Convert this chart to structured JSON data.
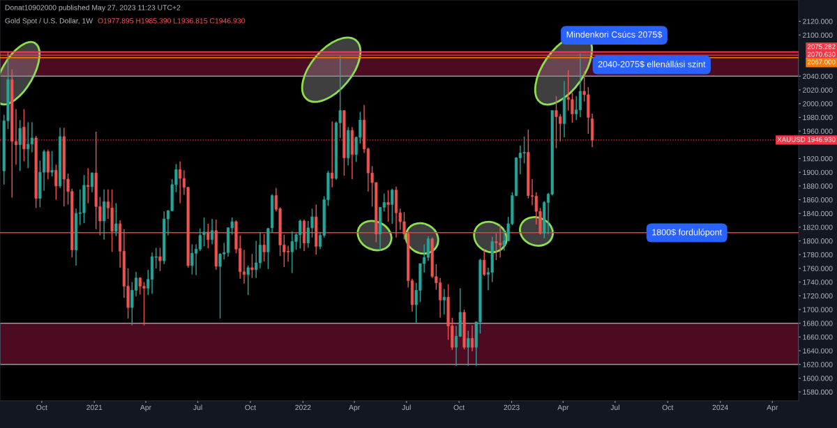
{
  "chart_data": {
    "type": "candlestick",
    "title": "Gold Spot / U.S. Dollar, 1W",
    "subtitle": "O1977.895 H1985.390 L1936.815 C1946.930",
    "annotations": [
      "Donat10902000 published May 27, 2023 11:23 UTC+2",
      "Mindenkori Csúcs 2075$",
      "2040-2075$ ellenállási szint",
      "1800$ fordulópont"
    ],
    "colors": [
      "#26a69a",
      "#26a69a",
      "#ef5350",
      "#ef5350",
      "#26a69a",
      "#ef5350",
      "#26a69a",
      "#26a69a",
      "#ef5350",
      "#26a69a",
      "#26a69a",
      "#ef5350",
      "#26a69a",
      "#ef5350",
      "#26a69a",
      "#ef5350",
      "#ef5350",
      "#ef5350",
      "#26a69a",
      "#26a69a",
      "#26a69a",
      "#ef5350",
      "#26a69a",
      "#ef5350",
      "#ef5350",
      "#26a69a",
      "#ef5350",
      "#ef5350",
      "#26a69a",
      "#ef5350",
      "#ef5350",
      "#ef5350",
      "#26a69a",
      "#26a69a",
      "#ef5350",
      "#ef5350",
      "#26a69a",
      "#26a69a",
      "#26a69a",
      "#ef5350",
      "#26a69a",
      "#26a69a",
      "#26a69a",
      "#26a69a",
      "#ef5350",
      "#ef5350",
      "#ef5350",
      "#26a69a",
      "#26a69a",
      "#26a69a",
      "#26a69a",
      "#ef5350",
      "#26a69a",
      "#ef5350",
      "#26a69a",
      "#26a69a",
      "#26a69a",
      "#26a69a",
      "#ef5350",
      "#ef5350",
      "#ef5350",
      "#26a69a",
      "#ef5350",
      "#26a69a",
      "#26a69a",
      "#ef5350",
      "#26a69a",
      "#26a69a",
      "#ef5350",
      "#ef5350",
      "#ef5350",
      "#ef5350",
      "#26a69a",
      "#26a69a",
      "#26a69a",
      "#ef5350",
      "#26a69a",
      "#26a69a",
      "#ef5350",
      "#26a69a",
      "#26a69a",
      "#26a69a",
      "#ef5350",
      "#26a69a",
      "#26a69a",
      "#ef5350",
      "#26a69a",
      "#ef5350",
      "#26a69a",
      "#26a69a",
      "#ef5350",
      "#ef5350",
      "#ef5350",
      "#ef5350",
      "#26a69a",
      "#26a69a",
      "#ef5350",
      "#26a69a",
      "#ef5350",
      "#ef5350",
      "#ef5350",
      "#ef5350",
      "#ef5350",
      "#26a69a",
      "#26a69a",
      "#26a69a",
      "#26a69a",
      "#ef5350",
      "#ef5350",
      "#ef5350",
      "#26a69a",
      "#ef5350",
      "#ef5350",
      "#26a69a",
      "#26a69a",
      "#ef5350",
      "#26a69a",
      "#ef5350",
      "#26a69a",
      "#26a69a",
      "#ef5350",
      "#26a69a",
      "#26a69a",
      "#ef5350",
      "#ef5350",
      "#26a69a",
      "#26a69a",
      "#26a69a",
      "#26a69a",
      "#26a69a",
      "#26a69a",
      "#ef5350",
      "#ef5350",
      "#ef5350",
      "#ef5350",
      "#26a69a",
      "#26a69a",
      "#26a69a",
      "#ef5350",
      "#ef5350",
      "#26a69a",
      "#ef5350",
      "#ef5350",
      "#26a69a",
      "#26a69a",
      "#ef5350",
      "#ef5350",
      "#ef5350"
    ],
    "x": [
      "2020-07-27",
      "2020-08-03",
      "2020-08-10",
      "2020-08-17",
      "2020-08-24",
      "2020-08-31",
      "2020-09-07",
      "2020-09-14",
      "2020-09-21",
      "2020-09-28",
      "2020-10-05",
      "2020-10-12",
      "2020-10-19",
      "2020-10-26",
      "2020-11-02",
      "2020-11-09",
      "2020-11-16",
      "2020-11-23",
      "2020-11-30",
      "2020-12-07",
      "2020-12-14",
      "2020-12-21",
      "2020-12-28",
      "2021-01-04",
      "2021-01-11",
      "2021-01-18",
      "2021-01-25",
      "2021-02-01",
      "2021-02-08",
      "2021-02-15",
      "2021-02-22",
      "2021-03-01",
      "2021-03-08",
      "2021-03-15",
      "2021-03-22",
      "2021-03-29",
      "2021-04-05",
      "2021-04-12",
      "2021-04-19",
      "2021-04-26",
      "2021-05-03",
      "2021-05-10",
      "2021-05-17",
      "2021-05-24",
      "2021-05-31",
      "2021-06-07",
      "2021-06-14",
      "2021-06-21",
      "2021-06-28",
      "2021-07-05",
      "2021-07-12",
      "2021-07-19",
      "2021-07-26",
      "2021-08-02",
      "2021-08-09",
      "2021-08-16",
      "2021-08-23",
      "2021-08-30",
      "2021-09-06",
      "2021-09-13",
      "2021-09-20",
      "2021-09-27",
      "2021-10-04",
      "2021-10-11",
      "2021-10-18",
      "2021-10-25",
      "2021-11-01",
      "2021-11-08",
      "2021-11-15",
      "2021-11-22",
      "2021-11-29",
      "2021-12-06",
      "2021-12-13",
      "2021-12-20",
      "2021-12-27",
      "2022-01-03",
      "2022-01-10",
      "2022-01-17",
      "2022-01-24",
      "2022-01-31",
      "2022-02-07",
      "2022-02-14",
      "2022-02-21",
      "2022-02-28",
      "2022-03-07",
      "2022-03-14",
      "2022-03-21",
      "2022-03-28",
      "2022-04-04",
      "2022-04-11",
      "2022-04-18",
      "2022-04-25",
      "2022-05-02",
      "2022-05-09",
      "2022-05-16",
      "2022-05-23",
      "2022-05-30",
      "2022-06-06",
      "2022-06-13",
      "2022-06-20",
      "2022-06-27",
      "2022-07-04",
      "2022-07-11",
      "2022-07-18",
      "2022-07-25",
      "2022-08-01",
      "2022-08-08",
      "2022-08-15",
      "2022-08-22",
      "2022-08-29",
      "2022-09-05",
      "2022-09-12",
      "2022-09-19",
      "2022-09-26",
      "2022-10-03",
      "2022-10-10",
      "2022-10-17",
      "2022-10-24",
      "2022-10-31",
      "2022-11-07",
      "2022-11-14",
      "2022-11-21",
      "2022-11-28",
      "2022-12-05",
      "2022-12-12",
      "2022-12-19",
      "2022-12-26",
      "2023-01-02",
      "2023-01-09",
      "2023-01-16",
      "2023-01-23",
      "2023-01-30",
      "2023-02-06",
      "2023-02-13",
      "2023-02-20",
      "2023-02-27",
      "2023-03-06",
      "2023-03-13",
      "2023-03-20",
      "2023-03-27",
      "2023-04-03",
      "2023-04-10",
      "2023-04-17",
      "2023-04-24",
      "2023-05-01",
      "2023-05-08",
      "2023-05-15",
      "2023-05-22"
    ],
    "ohlc": [
      [
        1902,
        1984,
        1882,
        1975
      ],
      [
        1975,
        2075,
        1963,
        2035
      ],
      [
        2035,
        2050,
        1863,
        1945
      ],
      [
        1945,
        1992,
        1911,
        1940
      ],
      [
        1940,
        1976,
        1902,
        1964
      ],
      [
        1966,
        1992,
        1916,
        1934
      ],
      [
        1934,
        1973,
        1906,
        1941
      ],
      [
        1941,
        1973,
        1929,
        1950
      ],
      [
        1950,
        1953,
        1848,
        1862
      ],
      [
        1862,
        1917,
        1849,
        1900
      ],
      [
        1900,
        1933,
        1873,
        1930
      ],
      [
        1930,
        1933,
        1890,
        1900
      ],
      [
        1900,
        1931,
        1894,
        1903
      ],
      [
        1903,
        1911,
        1860,
        1880
      ],
      [
        1880,
        1965,
        1877,
        1952
      ],
      [
        1952,
        1965,
        1850,
        1890
      ],
      [
        1890,
        1898,
        1853,
        1872
      ],
      [
        1872,
        1876,
        1776,
        1787
      ],
      [
        1787,
        1847,
        1764,
        1840
      ],
      [
        1840,
        1875,
        1823,
        1841
      ],
      [
        1841,
        1896,
        1826,
        1881
      ],
      [
        1881,
        1906,
        1855,
        1879
      ],
      [
        1879,
        1900,
        1871,
        1899
      ],
      [
        1899,
        1959,
        1817,
        1850
      ],
      [
        1850,
        1864,
        1808,
        1829
      ],
      [
        1829,
        1875,
        1802,
        1857
      ],
      [
        1857,
        1875,
        1832,
        1848
      ],
      [
        1848,
        1875,
        1784,
        1814
      ],
      [
        1814,
        1855,
        1807,
        1825
      ],
      [
        1825,
        1830,
        1761,
        1785
      ],
      [
        1785,
        1817,
        1717,
        1734
      ],
      [
        1734,
        1760,
        1687,
        1703
      ],
      [
        1703,
        1740,
        1677,
        1728
      ],
      [
        1728,
        1755,
        1719,
        1746
      ],
      [
        1746,
        1747,
        1722,
        1734
      ],
      [
        1734,
        1740,
        1677,
        1731
      ],
      [
        1731,
        1758,
        1721,
        1744
      ],
      [
        1744,
        1783,
        1723,
        1777
      ],
      [
        1776,
        1790,
        1760,
        1777
      ],
      [
        1777,
        1790,
        1756,
        1771
      ],
      [
        1771,
        1843,
        1766,
        1832
      ],
      [
        1832,
        1845,
        1808,
        1844
      ],
      [
        1844,
        1890,
        1843,
        1882
      ],
      [
        1882,
        1912,
        1871,
        1904
      ],
      [
        1904,
        1916,
        1855,
        1891
      ],
      [
        1891,
        1903,
        1867,
        1878
      ],
      [
        1878,
        1879,
        1761,
        1764
      ],
      [
        1764,
        1795,
        1751,
        1782
      ],
      [
        1782,
        1795,
        1750,
        1788
      ],
      [
        1788,
        1818,
        1785,
        1808
      ],
      [
        1809,
        1834,
        1792,
        1813
      ],
      [
        1813,
        1825,
        1789,
        1802
      ],
      [
        1802,
        1832,
        1795,
        1815
      ],
      [
        1815,
        1831,
        1758,
        1763
      ],
      [
        1763,
        1782,
        1687,
        1781
      ],
      [
        1781,
        1797,
        1773,
        1783
      ],
      [
        1783,
        1820,
        1777,
        1819
      ],
      [
        1819,
        1834,
        1809,
        1828
      ],
      [
        1828,
        1830,
        1782,
        1788
      ],
      [
        1789,
        1808,
        1745,
        1755
      ],
      [
        1755,
        1787,
        1738,
        1751
      ],
      [
        1751,
        1764,
        1721,
        1761
      ],
      [
        1761,
        1781,
        1746,
        1758
      ],
      [
        1758,
        1800,
        1746,
        1768
      ],
      [
        1768,
        1813,
        1760,
        1794
      ],
      [
        1794,
        1810,
        1770,
        1784
      ],
      [
        1784,
        1819,
        1759,
        1818
      ],
      [
        1819,
        1868,
        1812,
        1866
      ],
      [
        1866,
        1877,
        1843,
        1846
      ],
      [
        1847,
        1849,
        1778,
        1794
      ],
      [
        1794,
        1809,
        1762,
        1784
      ],
      [
        1785,
        1793,
        1770,
        1784
      ],
      [
        1784,
        1814,
        1753,
        1799
      ],
      [
        1799,
        1811,
        1787,
        1809
      ],
      [
        1809,
        1831,
        1789,
        1829
      ],
      [
        1829,
        1831,
        1785,
        1797
      ],
      [
        1797,
        1829,
        1790,
        1819
      ],
      [
        1819,
        1847,
        1805,
        1835
      ],
      [
        1835,
        1853,
        1780,
        1792
      ],
      [
        1792,
        1813,
        1788,
        1808
      ],
      [
        1808,
        1865,
        1805,
        1860
      ],
      [
        1860,
        1902,
        1851,
        1899
      ],
      [
        1899,
        1974,
        1878,
        1891
      ],
      [
        1891,
        1974,
        1889,
        1972
      ],
      [
        1972,
        2070,
        1950,
        1990
      ],
      [
        1990,
        1990,
        1895,
        1921
      ],
      [
        1921,
        1966,
        1910,
        1961
      ],
      [
        1961,
        1966,
        1890,
        1926
      ],
      [
        1926,
        1952,
        1915,
        1951
      ],
      [
        1951,
        1988,
        1942,
        1976
      ],
      [
        1976,
        1998,
        1928,
        1934
      ],
      [
        1934,
        1936,
        1872,
        1899
      ],
      [
        1899,
        1909,
        1850,
        1885
      ],
      [
        1885,
        1885,
        1798,
        1810
      ],
      [
        1810,
        1849,
        1786,
        1849
      ],
      [
        1849,
        1869,
        1843,
        1856
      ],
      [
        1856,
        1874,
        1828,
        1853
      ],
      [
        1853,
        1876,
        1825,
        1874
      ],
      [
        1874,
        1879,
        1805,
        1841
      ],
      [
        1841,
        1847,
        1816,
        1828
      ],
      [
        1828,
        1842,
        1802,
        1810
      ],
      [
        1810,
        1814,
        1732,
        1742
      ],
      [
        1742,
        1745,
        1697,
        1707
      ],
      [
        1707,
        1739,
        1681,
        1728
      ],
      [
        1728,
        1767,
        1711,
        1767
      ],
      [
        1767,
        1795,
        1754,
        1776
      ],
      [
        1776,
        1807,
        1771,
        1803
      ],
      [
        1803,
        1805,
        1746,
        1748
      ],
      [
        1748,
        1766,
        1729,
        1739
      ],
      [
        1739,
        1746,
        1688,
        1714
      ],
      [
        1714,
        1730,
        1693,
        1718
      ],
      [
        1718,
        1737,
        1656,
        1676
      ],
      [
        1676,
        1688,
        1641,
        1645
      ],
      [
        1645,
        1676,
        1618,
        1661
      ],
      [
        1661,
        1731,
        1660,
        1696
      ],
      [
        1696,
        1700,
        1642,
        1645
      ],
      [
        1645,
        1669,
        1618,
        1658
      ],
      [
        1658,
        1677,
        1639,
        1645
      ],
      [
        1645,
        1682,
        1618,
        1682
      ],
      [
        1682,
        1774,
        1665,
        1772
      ],
      [
        1772,
        1787,
        1749,
        1751
      ],
      [
        1751,
        1761,
        1728,
        1754
      ],
      [
        1754,
        1806,
        1740,
        1799
      ],
      [
        1799,
        1811,
        1772,
        1797
      ],
      [
        1797,
        1823,
        1776,
        1794
      ],
      [
        1794,
        1816,
        1786,
        1800
      ],
      [
        1800,
        1835,
        1800,
        1825
      ],
      [
        1825,
        1871,
        1823,
        1866
      ],
      [
        1866,
        1922,
        1865,
        1921
      ],
      [
        1921,
        1939,
        1897,
        1928
      ],
      [
        1928,
        1952,
        1913,
        1929
      ],
      [
        1929,
        1962,
        1862,
        1866
      ],
      [
        1866,
        1890,
        1852,
        1865
      ],
      [
        1865,
        1871,
        1824,
        1843
      ],
      [
        1843,
        1848,
        1809,
        1811
      ],
      [
        1811,
        1858,
        1804,
        1856
      ],
      [
        1856,
        1870,
        1810,
        1868
      ],
      [
        1868,
        1990,
        1866,
        1990
      ],
      [
        1990,
        2011,
        1935,
        1981
      ],
      [
        1981,
        1985,
        1945,
        1971
      ],
      [
        1971,
        2033,
        1951,
        2009
      ],
      [
        2009,
        2049,
        1990,
        2006
      ],
      [
        2006,
        2016,
        1972,
        1985
      ],
      [
        1985,
        2011,
        1976,
        1991
      ],
      [
        1991,
        2073,
        1980,
        2018
      ],
      [
        2018,
        2047,
        2003,
        2013
      ],
      [
        2013,
        2024,
        1956,
        1980
      ],
      [
        1977.895,
        1985.39,
        1936.815,
        1946.93
      ]
    ],
    "xlim": [
      "2020-07-20",
      "2024-05-17"
    ],
    "ylim": [
      1567,
      2151
    ],
    "xticks": [
      {
        "value": "2020-10-01",
        "label": "Oct"
      },
      {
        "value": "2021-01-01",
        "label": "2021"
      },
      {
        "value": "2021-04-01",
        "label": "Apr"
      },
      {
        "value": "2021-07-01",
        "label": "Jul"
      },
      {
        "value": "2021-10-01",
        "label": "Oct"
      },
      {
        "value": "2022-01-01",
        "label": "2022"
      },
      {
        "value": "2022-04-01",
        "label": "Apr"
      },
      {
        "value": "2022-07-01",
        "label": "Jul"
      },
      {
        "value": "2022-10-01",
        "label": "Oct"
      },
      {
        "value": "2023-01-01",
        "label": "2023"
      },
      {
        "value": "2023-04-01",
        "label": "Apr"
      },
      {
        "value": "2023-07-01",
        "label": "Jul"
      },
      {
        "value": "2023-10-01",
        "label": "Oct"
      },
      {
        "value": "2024-01-01",
        "label": "2024"
      },
      {
        "value": "2024-04-01",
        "label": "Apr"
      }
    ],
    "yticks": [
      {
        "value": 1580,
        "label": "1580.000"
      },
      {
        "value": 1600,
        "label": "1600.000"
      },
      {
        "value": 1620,
        "label": "1620.000"
      },
      {
        "value": 1640,
        "label": "1640.000"
      },
      {
        "value": 1660,
        "label": "1660.000"
      },
      {
        "value": 1680,
        "label": "1680.000"
      },
      {
        "value": 1700,
        "label": "1700.000"
      },
      {
        "value": 1720,
        "label": "1720.000"
      },
      {
        "value": 1740,
        "label": "1740.000"
      },
      {
        "value": 1760,
        "label": "1760.000"
      },
      {
        "value": 1780,
        "label": "1780.000"
      },
      {
        "value": 1800,
        "label": "1800.000"
      },
      {
        "value": 1820,
        "label": "1820.000"
      },
      {
        "value": 1840,
        "label": "1840.000"
      },
      {
        "value": 1860,
        "label": "1860.000"
      },
      {
        "value": 1880,
        "label": "1880.000"
      },
      {
        "value": 1900,
        "label": "1900.000"
      },
      {
        "value": 1920,
        "label": "1920.000"
      },
      {
        "value": 1960,
        "label": "1960.000"
      },
      {
        "value": 1980,
        "label": "1980.000"
      },
      {
        "value": 2000,
        "label": "2000.000"
      },
      {
        "value": 2020,
        "label": "2020.000"
      },
      {
        "value": 2040,
        "label": "2040.000"
      },
      {
        "value": 2100,
        "label": "2100.000"
      },
      {
        "value": 2120,
        "label": "2120.000"
      }
    ],
    "bands": [
      {
        "axis": "y",
        "from": 2040,
        "to": 2075.282,
        "color": "#4c0b20"
      },
      {
        "axis": "y",
        "from": 1620,
        "to": 1680,
        "color": "#4c0b20"
      }
    ],
    "ref_lines": [
      {
        "axis": "y",
        "value": 2075.282,
        "label": "2075.282",
        "color": "#f23645",
        "line_style": "solid"
      },
      {
        "axis": "y",
        "value": 2070.63,
        "label": "2070.630",
        "color": "#f23645",
        "line_style": "solid"
      },
      {
        "axis": "y",
        "value": 2067,
        "label": "2067.000",
        "color": "#f57c00",
        "line_style": "solid"
      },
      {
        "axis": "y",
        "value": 1946.93,
        "label": "XAUUSD 1946.930",
        "color": "#f23645",
        "line_style": "dotted"
      },
      {
        "axis": "y",
        "value": 1812,
        "color": "#f23645",
        "line_style": "solid"
      }
    ]
  }
}
